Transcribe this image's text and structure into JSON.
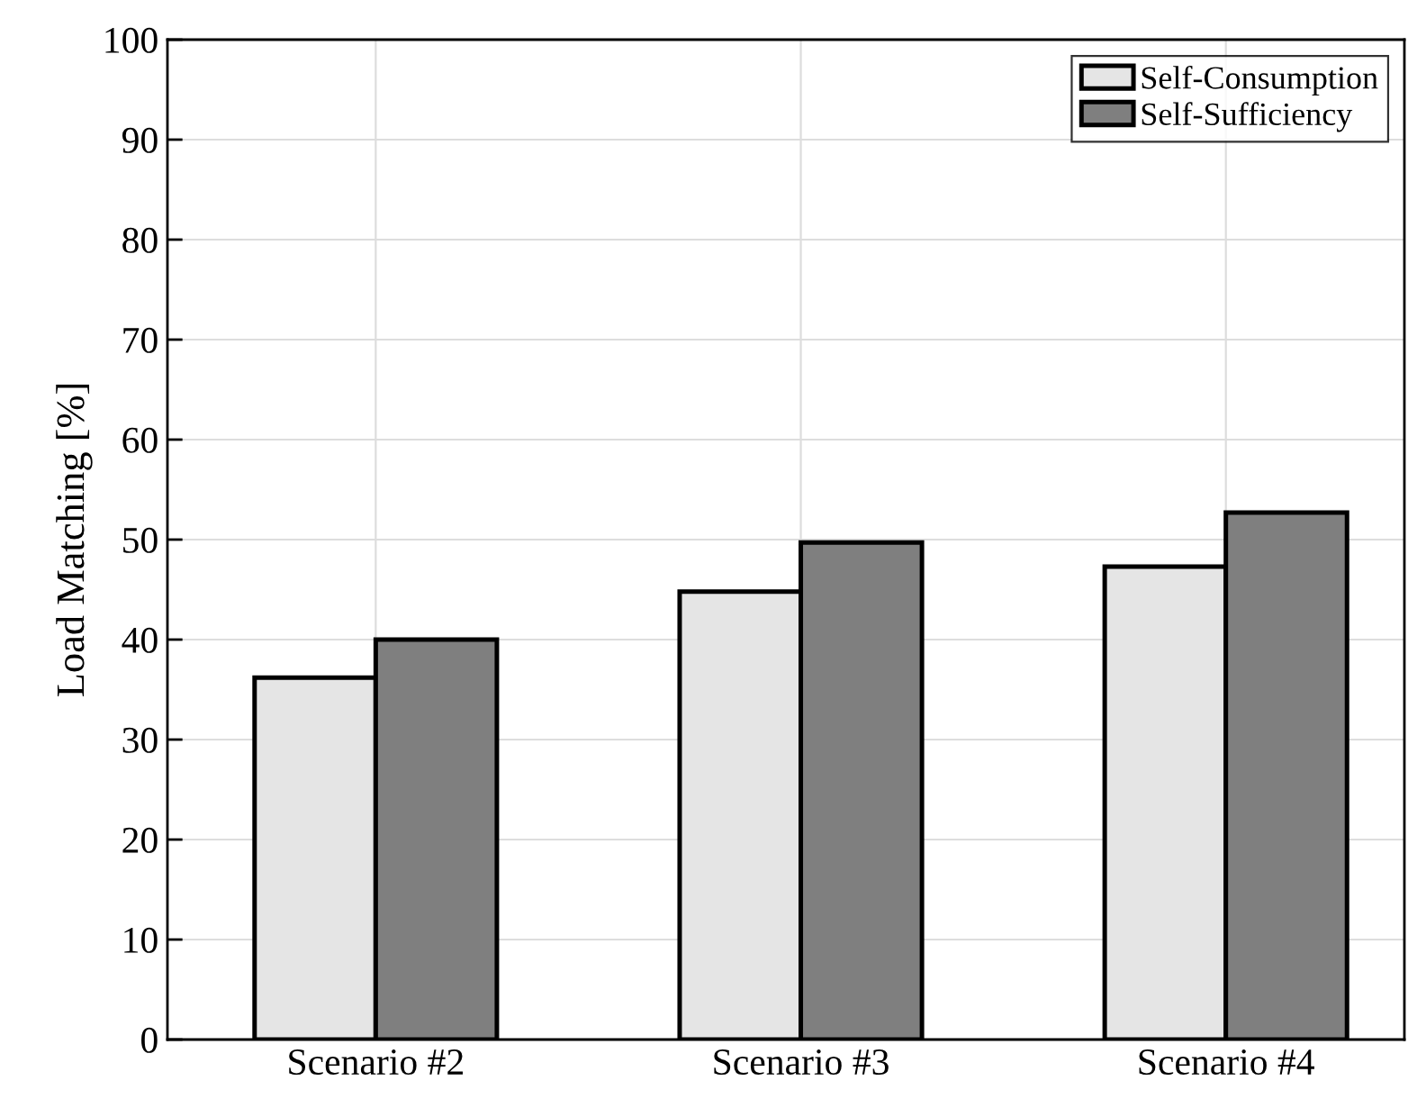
{
  "chart_data": {
    "type": "bar",
    "ylabel": "Load Matching [%]",
    "categories": [
      "Scenario #2",
      "Scenario #3",
      "Scenario #4"
    ],
    "series": [
      {
        "name": "Self-Consumption",
        "color": "#e5e5e5",
        "values": [
          36.2,
          44.8,
          47.3
        ]
      },
      {
        "name": "Self-Sufficiency",
        "color": "#7f7f7f",
        "values": [
          40.0,
          49.7,
          52.7
        ]
      }
    ],
    "ylim": [
      0,
      100
    ],
    "yticks": [
      0,
      10,
      20,
      30,
      40,
      50,
      60,
      70,
      80,
      90,
      100
    ],
    "grid": true,
    "legend": "top right"
  }
}
